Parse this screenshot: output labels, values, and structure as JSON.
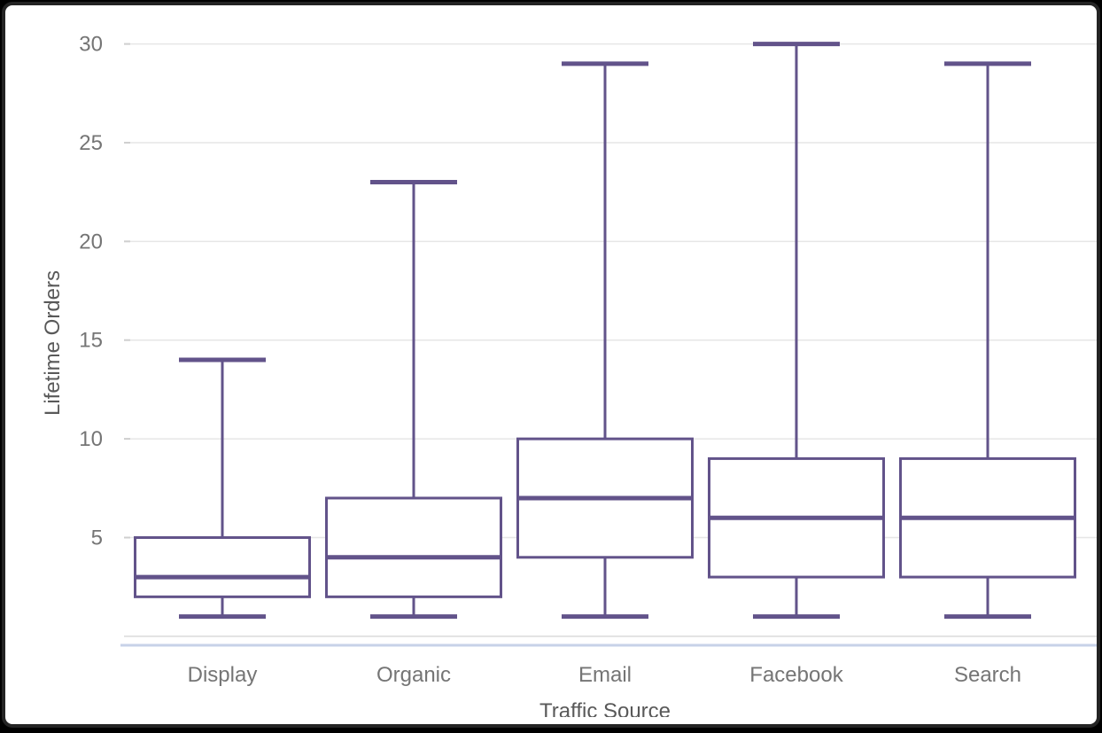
{
  "chart_data": {
    "type": "box",
    "title": "",
    "xlabel": "Traffic Source",
    "ylabel": "Lifetime Orders",
    "categories": [
      "Display",
      "Organic",
      "Email",
      "Facebook",
      "Search"
    ],
    "series": [
      {
        "name": "Display",
        "min": 1,
        "q1": 2,
        "median": 3,
        "q3": 5,
        "max": 14
      },
      {
        "name": "Organic",
        "min": 1,
        "q1": 2,
        "median": 4,
        "q3": 7,
        "max": 23
      },
      {
        "name": "Email",
        "min": 1,
        "q1": 4,
        "median": 7,
        "q3": 10,
        "max": 29
      },
      {
        "name": "Facebook",
        "min": 1,
        "q1": 3,
        "median": 6,
        "q3": 9,
        "max": 30
      },
      {
        "name": "Search",
        "min": 1,
        "q1": 3,
        "median": 6,
        "q3": 9,
        "max": 29
      }
    ],
    "ylim": [
      0,
      30
    ],
    "yticks": [
      5,
      10,
      15,
      20,
      25,
      30
    ],
    "grid": true,
    "legend": "none",
    "colors": {
      "box_stroke": "#62538A",
      "box_fill": "#ffffff",
      "gridline": "#e6e6e6",
      "zero_gridline": "#e2e2e2",
      "axis_baseline": "#c7d2e8",
      "tick_mark": "#cfcfcf",
      "tick_label": "#757575",
      "axis_title": "#595959"
    }
  }
}
